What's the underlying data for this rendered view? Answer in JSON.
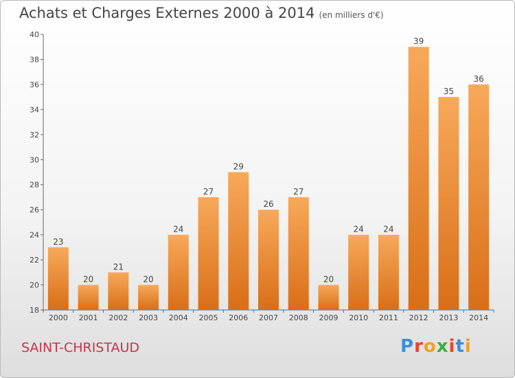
{
  "header": {
    "title": "Achats et Charges Externes 2000 à 2014",
    "unit": "(en milliers d'€)"
  },
  "footer": {
    "commune": "SAINT-CHRISTAUD",
    "brand": "Proxiti"
  },
  "colors": {
    "bar_light": "#f7a95a",
    "bar_dark": "#d96e17",
    "commune_text": "#c8324e",
    "brand_letters": [
      "#3a8fd9",
      "#e8452c",
      "#f2a01f",
      "#3aae3f",
      "#e8452c",
      "#3a8fd9",
      "#f2a01f"
    ]
  },
  "chart_data": {
    "type": "bar",
    "title": "Achats et Charges Externes 2000 à 2014",
    "subtitle": "(en milliers d'€)",
    "xlabel": "",
    "ylabel": "",
    "categories": [
      "2000",
      "2001",
      "2002",
      "2003",
      "2004",
      "2005",
      "2006",
      "2007",
      "2008",
      "2009",
      "2010",
      "2011",
      "2012",
      "2013",
      "2014"
    ],
    "values": [
      23,
      20,
      21,
      20,
      24,
      27,
      29,
      26,
      27,
      20,
      24,
      24,
      39,
      35,
      36
    ],
    "ylim": [
      18,
      40
    ],
    "yticks": [
      18,
      20,
      22,
      24,
      26,
      28,
      30,
      32,
      34,
      36,
      38,
      40
    ],
    "grid": false,
    "legend": "none"
  }
}
